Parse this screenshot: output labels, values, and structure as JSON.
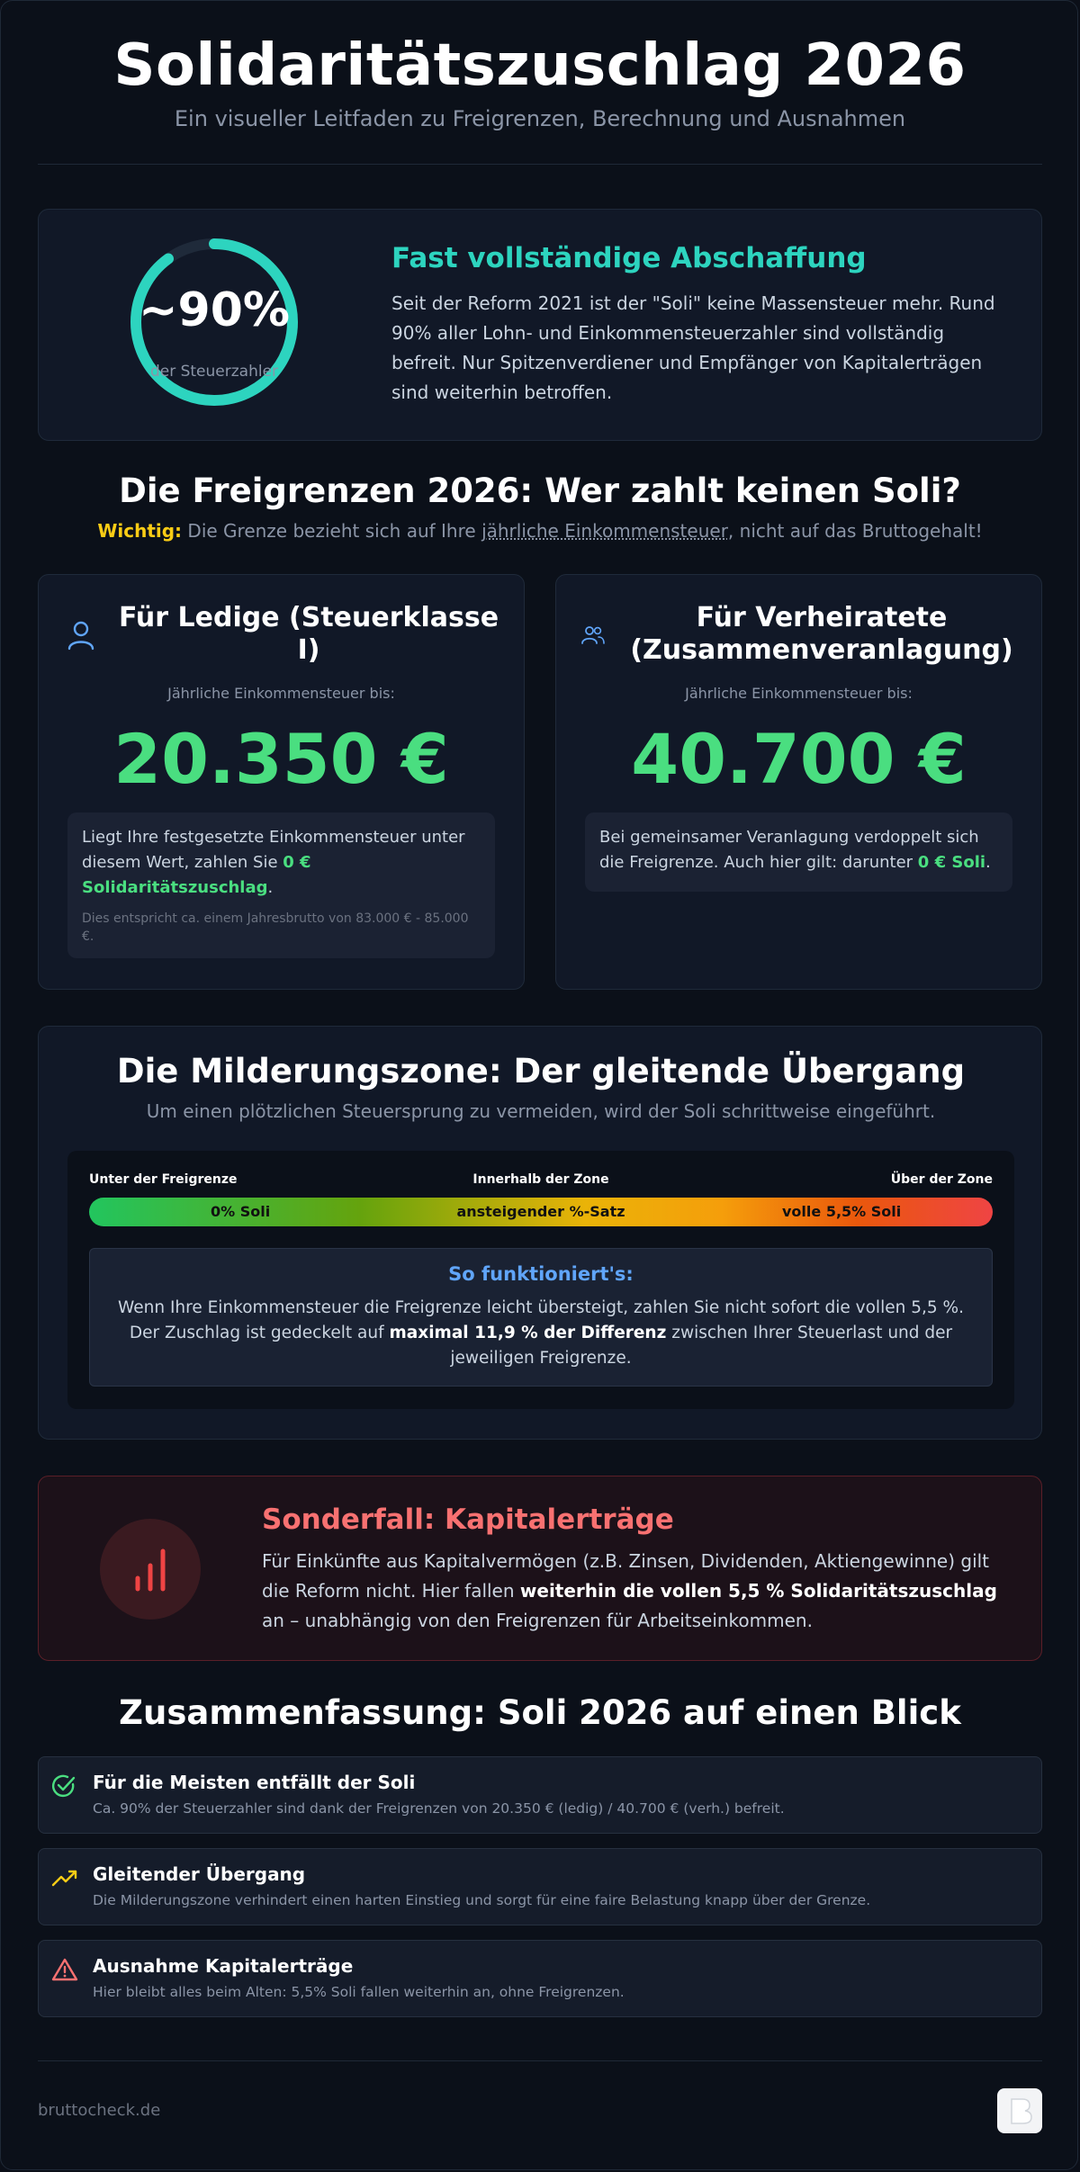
{
  "header": {
    "title": "Solidaritätszuschlag 2026",
    "subtitle": "Ein visueller Leitfaden zu Freigrenzen, Berechnung und Ausnahmen"
  },
  "hero": {
    "percent_label": "~90%",
    "percent_value": 90,
    "percent_caption": "der Steuerzahler",
    "title": "Fast vollständige Abschaffung",
    "text": "Seit der Reform 2021 ist der \"Soli\" keine Massensteuer mehr. Rund 90% aller Lohn- und Einkommensteuerzahler sind vollständig befreit. Nur Spitzenverdiener und Empfänger von Kapitalerträgen sind weiterhin betroffen.",
    "ring_color": "#2dd4bf"
  },
  "freigrenzen": {
    "title": "Die Freigrenzen 2026: Wer zahlt keinen Soli?",
    "note_prefix": "Wichtig:",
    "note_part1": "Die Grenze bezieht sich auf Ihre ",
    "note_underlined": "jährliche Einkommensteuer",
    "note_part2": ", nicht auf das Bruttogehalt!",
    "ledig": {
      "icon": "user-icon",
      "title": "Für Ledige (Steuerklasse I)",
      "label": "Jährliche Einkommensteuer bis:",
      "amount": "20.350 €",
      "box_part1": "Liegt Ihre festgesetzte Einkommensteuer unter diesem Wert, zahlen Sie ",
      "box_highlight": "0 € Solidaritätszuschlag",
      "box_part2": ".",
      "box_small": "Dies entspricht ca. einem Jahresbrutto von 83.000 € - 85.000 €."
    },
    "verheiratet": {
      "icon": "users-icon",
      "title": "Für Verheiratete (Zusammenveranlagung)",
      "label": "Jährliche Einkommensteuer bis:",
      "amount": "40.700 €",
      "box_part1": "Bei gemeinsamer Veranlagung verdoppelt sich die Freigrenze. Auch hier gilt: darunter ",
      "box_highlight": "0 € Soli",
      "box_part2": "."
    },
    "amount_color": "#4ade80"
  },
  "milderungszone": {
    "title": "Die Milderungszone: Der gleitende Übergang",
    "subtitle": "Um einen plötzlichen Steuersprung zu vermeiden, wird der Soli schrittweise eingeführt.",
    "label_left": "Unter der Freigrenze",
    "label_mid": "Innerhalb der Zone",
    "label_right": "Über der Zone",
    "bar_left": "0% Soli",
    "bar_mid": "ansteigender %-Satz",
    "bar_right": "volle 5,5% Soli",
    "how_title": "So funktioniert's:",
    "how_part1": "Wenn Ihre Einkommensteuer die Freigrenze leicht übersteigt, zahlen Sie nicht sofort die vollen 5,5 %. Der Zuschlag ist gedeckelt auf ",
    "how_bold": "maximal 11,9 % der Differenz",
    "how_part2": " zwischen Ihrer Steuerlast und der jeweiligen Freigrenze."
  },
  "kapital": {
    "icon": "bar-chart-icon",
    "title": "Sonderfall: Kapitalerträge",
    "text_part1": "Für Einkünfte aus Kapitalvermögen (z.B. Zinsen, Dividenden, Aktiengewinne) gilt die Reform nicht. Hier fallen ",
    "text_bold": "weiterhin die vollen 5,5 % Solidaritätszuschlag",
    "text_part2": " an – unabhängig von den Freigrenzen für Arbeitseinkommen.",
    "accent": "#f87171"
  },
  "summary": {
    "title": "Zusammenfassung: Soli 2026 auf einen Blick",
    "items": [
      {
        "icon": "check-circle-icon",
        "title": "Für die Meisten entfällt der Soli",
        "text": "Ca. 90% der Steuerzahler sind dank der Freigrenzen von 20.350 € (ledig) / 40.700 € (verh.) befreit."
      },
      {
        "icon": "trending-up-icon",
        "title": "Gleitender Übergang",
        "text": "Die Milderungszone verhindert einen harten Einstieg und sorgt für eine faire Belastung knapp über der Grenze."
      },
      {
        "icon": "warning-triangle-icon",
        "title": "Ausnahme Kapitalerträge",
        "text": "Hier bleibt alles beim Alten: 5,5% Soli fallen weiterhin an, ohne Freigrenzen."
      }
    ]
  },
  "footer": {
    "site": "bruttocheck.de",
    "logo_icon": "bruttocheck-logo-icon"
  }
}
